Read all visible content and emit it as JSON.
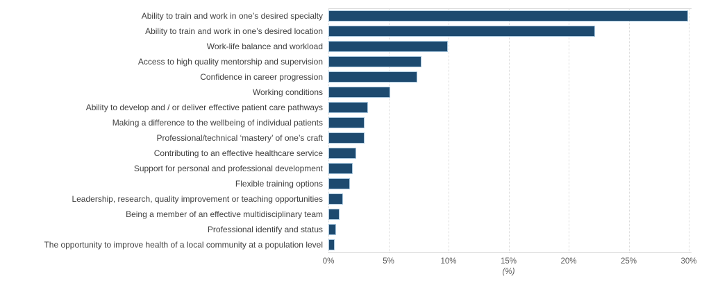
{
  "chart_data": {
    "type": "bar",
    "orientation": "horizontal",
    "title": "",
    "categories": [
      "Ability to train and work in one’s desired specialty",
      "Ability to train and work in one’s desired location",
      "Work-life balance and workload",
      "Access to high quality mentorship and supervision",
      "Confidence in career progression",
      "Working conditions",
      "Ability to develop and / or deliver effective patient care pathways",
      "Making a difference to the wellbeing of individual patients",
      "Professional/technical ‘mastery’ of one’s craft",
      "Contributing to an effective healthcare service",
      "Support for personal and professional development",
      "Flexible training options",
      "Leadership, research, quality improvement or teaching opportunities",
      "Being a member of an effective multidisciplinary team",
      "Professional identify and status",
      "The opportunity to improve health of a local community at a population level"
    ],
    "values": [
      29.8,
      22.1,
      9.8,
      7.6,
      7.3,
      5.0,
      3.2,
      2.9,
      2.9,
      2.2,
      1.9,
      1.7,
      1.1,
      0.8,
      0.5,
      0.4
    ],
    "unit": "%",
    "xlabel": "(%)",
    "xlim": [
      0,
      30
    ],
    "x_ticks": [
      "0%",
      "5%",
      "10%",
      "15%",
      "20%",
      "25%",
      "30%"
    ],
    "x_tick_values": [
      0,
      5,
      10,
      15,
      20,
      25,
      30
    ],
    "grid": "vertical-dotted",
    "legend": "none",
    "colors": {
      "bar_fill": "#1d4a6f",
      "bar_border": "#a7c6dd",
      "gridline": "#d9d9d9",
      "axis_line": "#d9d9d9",
      "category_label": "#3f3f3f",
      "tick_label": "#595959"
    }
  }
}
